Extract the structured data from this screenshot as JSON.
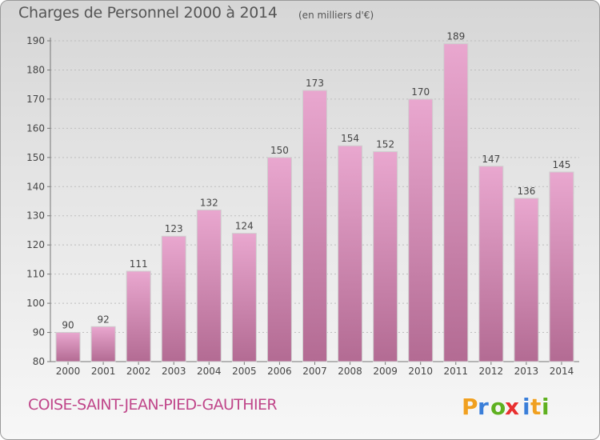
{
  "header": {
    "title": "Charges de Personnel 2000 à 2014",
    "subtitle": "(en milliers d'€)"
  },
  "footer": {
    "commune": "COISE-SAINT-JEAN-PIED-GAUTHIER",
    "logo_text": "Proxiti",
    "logo_letters": [
      "P",
      "r",
      "o",
      "x",
      "i",
      "t",
      "i"
    ],
    "logo_colors": [
      "#f0a020",
      "#3a7ed8",
      "#5fb020",
      "#e83030",
      "#3a7ed8",
      "#f0a020",
      "#5fb020"
    ]
  },
  "colors": {
    "bar_top": "#e9a7cf",
    "bar_bottom": "#b36b93",
    "accent": "#c0468a"
  },
  "chart_data": {
    "type": "bar",
    "title": "Charges de Personnel 2000 à 2014",
    "subtitle": "(en milliers d'€)",
    "categories": [
      "2000",
      "2001",
      "2002",
      "2003",
      "2004",
      "2005",
      "2006",
      "2007",
      "2008",
      "2009",
      "2010",
      "2011",
      "2012",
      "2013",
      "2014"
    ],
    "values": [
      90,
      92,
      111,
      123,
      132,
      124,
      150,
      173,
      154,
      152,
      170,
      189,
      147,
      136,
      145
    ],
    "ylim": [
      80,
      190
    ],
    "yticks": [
      80,
      90,
      100,
      110,
      120,
      130,
      140,
      150,
      160,
      170,
      180,
      190
    ],
    "grid": true,
    "xlabel": "",
    "ylabel": ""
  }
}
